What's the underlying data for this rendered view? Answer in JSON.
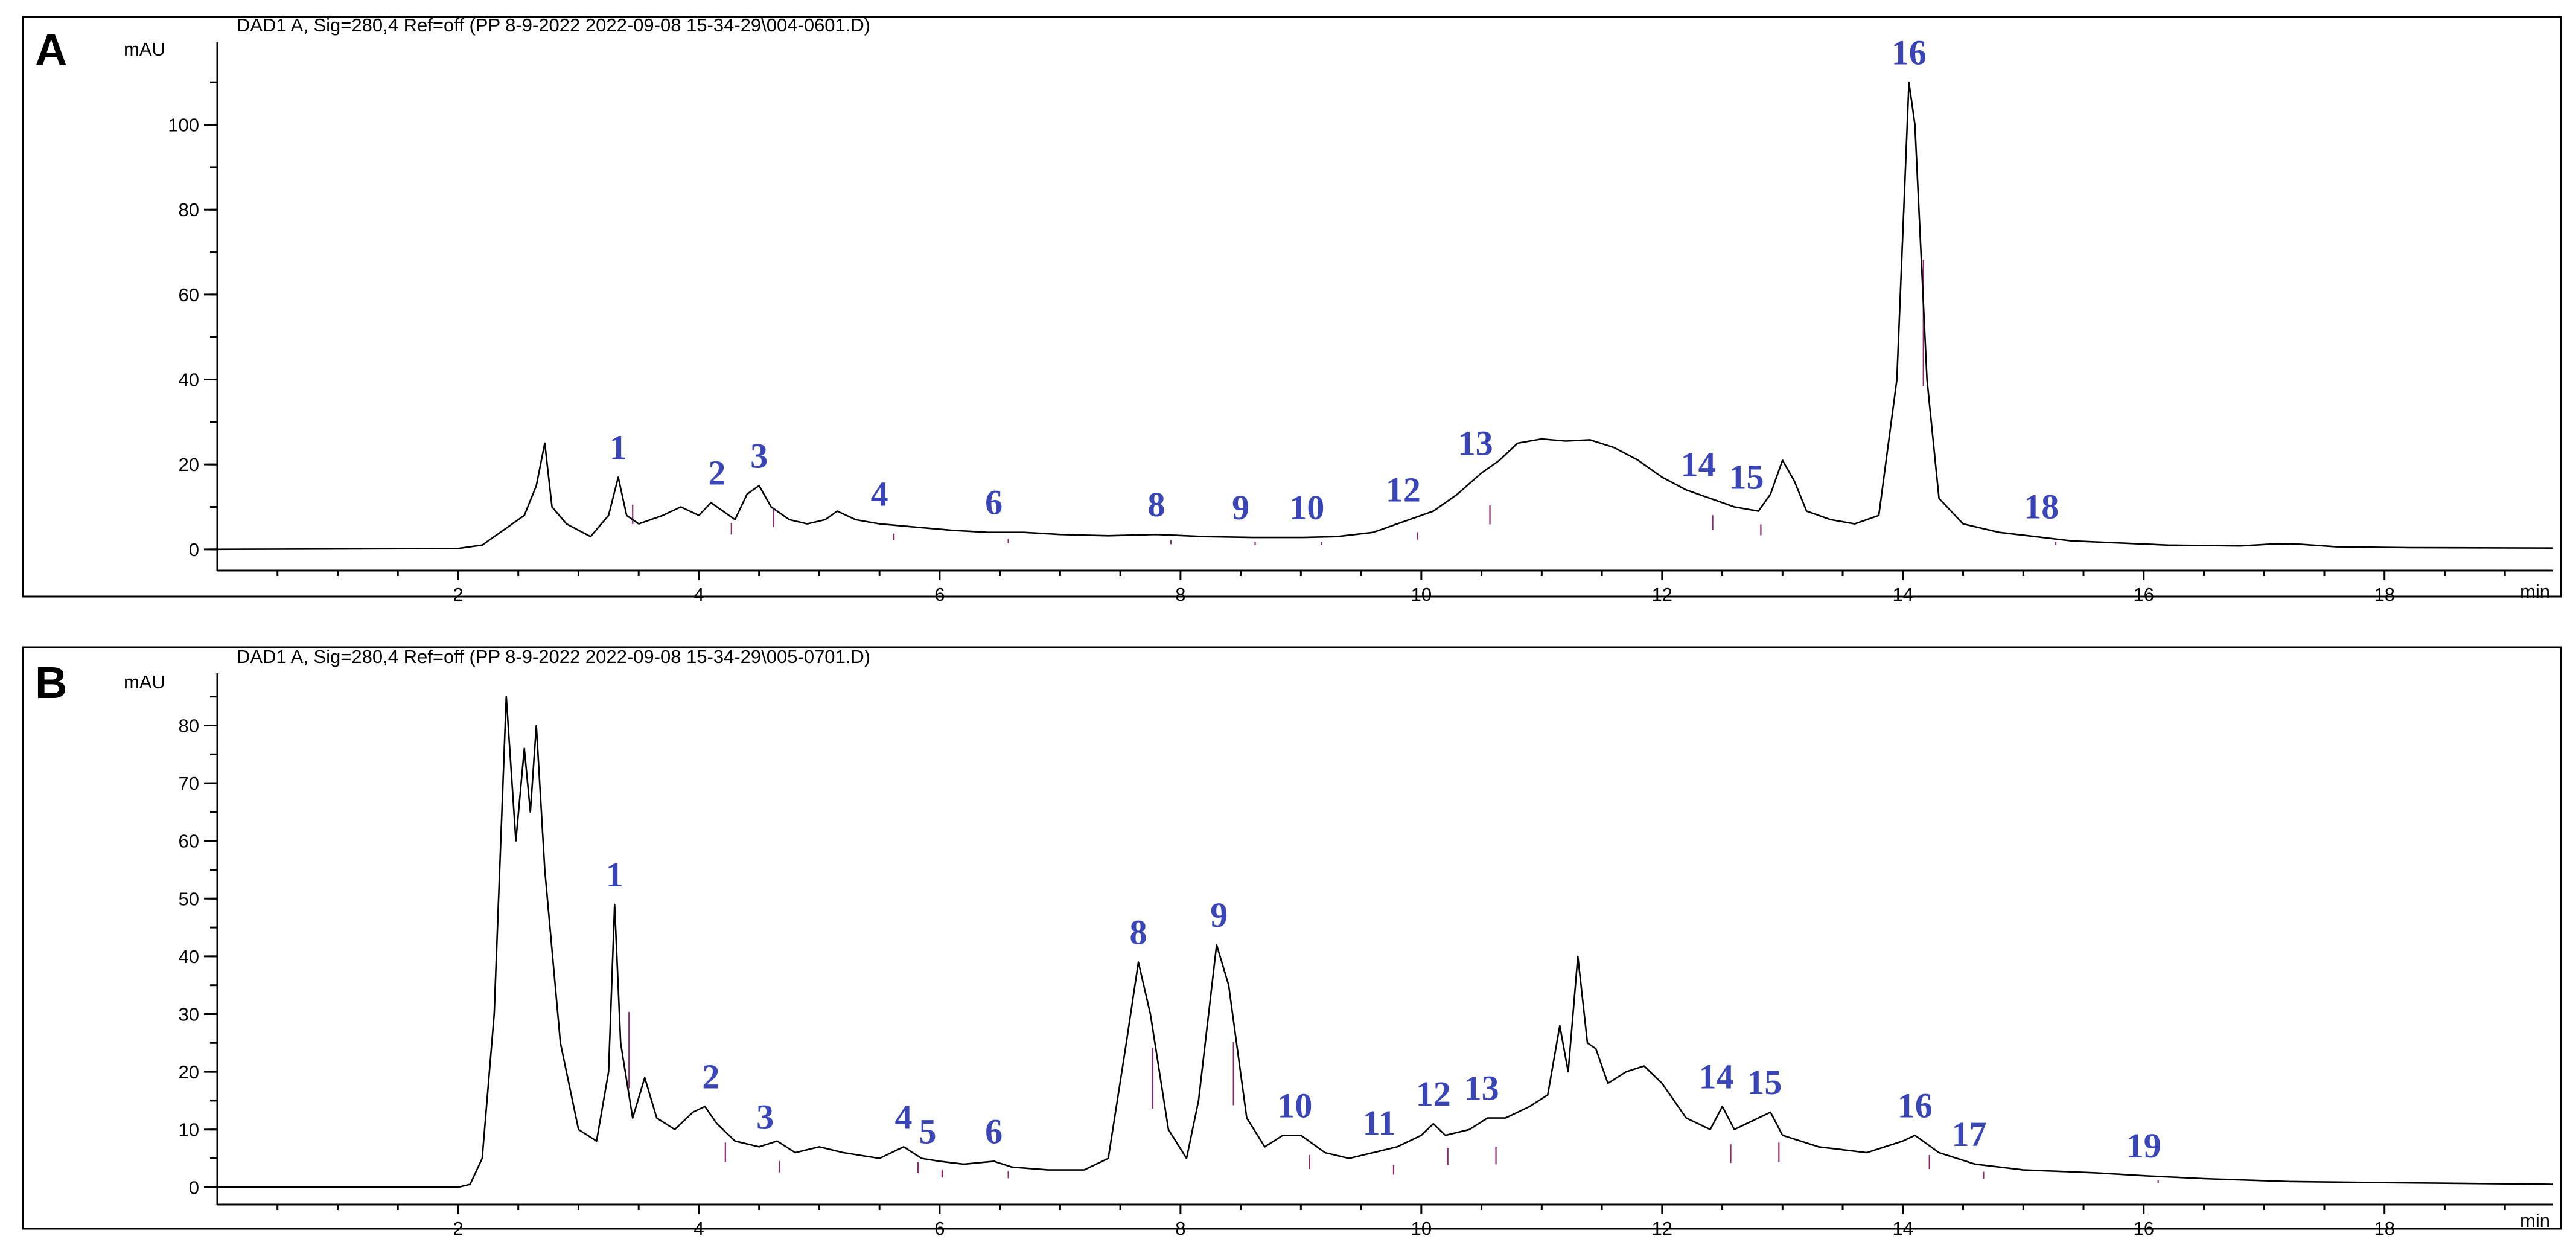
{
  "panels": [
    {
      "letter": "A",
      "header": "DAD1 A, Sig=280,4 Ref=off (PP 8-9-2022 2022-09-08 15-34-29\\004-0601.D)",
      "y_unit": "mAU",
      "x_unit": "min",
      "chart_data": {
        "type": "line",
        "xlim": [
          0,
          19.4
        ],
        "ylim": [
          -5,
          118
        ],
        "x_ticks": [
          2,
          4,
          6,
          8,
          10,
          12,
          14,
          16,
          18
        ],
        "y_ticks": [
          0,
          20,
          40,
          60,
          80,
          100
        ],
        "trace": [
          [
            0,
            0
          ],
          [
            2.0,
            0.2
          ],
          [
            2.2,
            1
          ],
          [
            2.4,
            5
          ],
          [
            2.55,
            8
          ],
          [
            2.65,
            15
          ],
          [
            2.72,
            25
          ],
          [
            2.78,
            10
          ],
          [
            2.9,
            6
          ],
          [
            3.1,
            3
          ],
          [
            3.25,
            8
          ],
          [
            3.33,
            17
          ],
          [
            3.4,
            8
          ],
          [
            3.5,
            6
          ],
          [
            3.7,
            8
          ],
          [
            3.85,
            10
          ],
          [
            4.0,
            8
          ],
          [
            4.1,
            11
          ],
          [
            4.2,
            9
          ],
          [
            4.3,
            7
          ],
          [
            4.4,
            13
          ],
          [
            4.5,
            15
          ],
          [
            4.6,
            10
          ],
          [
            4.75,
            7
          ],
          [
            4.9,
            6
          ],
          [
            5.05,
            7
          ],
          [
            5.15,
            9
          ],
          [
            5.3,
            7
          ],
          [
            5.5,
            6
          ],
          [
            5.7,
            5.5
          ],
          [
            5.9,
            5
          ],
          [
            6.1,
            4.5
          ],
          [
            6.4,
            4
          ],
          [
            6.7,
            4
          ],
          [
            7.0,
            3.5
          ],
          [
            7.4,
            3.2
          ],
          [
            7.8,
            3.5
          ],
          [
            8.2,
            3
          ],
          [
            8.6,
            2.8
          ],
          [
            9.0,
            2.8
          ],
          [
            9.3,
            3
          ],
          [
            9.6,
            4
          ],
          [
            9.9,
            7
          ],
          [
            10.1,
            9
          ],
          [
            10.3,
            13
          ],
          [
            10.5,
            18
          ],
          [
            10.65,
            21
          ],
          [
            10.8,
            25
          ],
          [
            11.0,
            26
          ],
          [
            11.2,
            25.5
          ],
          [
            11.4,
            25.8
          ],
          [
            11.6,
            24
          ],
          [
            11.8,
            21
          ],
          [
            12.0,
            17
          ],
          [
            12.2,
            14
          ],
          [
            12.4,
            12
          ],
          [
            12.6,
            10
          ],
          [
            12.8,
            9
          ],
          [
            12.9,
            13
          ],
          [
            13.0,
            21
          ],
          [
            13.1,
            16
          ],
          [
            13.2,
            9
          ],
          [
            13.4,
            7
          ],
          [
            13.6,
            6
          ],
          [
            13.8,
            8
          ],
          [
            13.95,
            40
          ],
          [
            14.05,
            110
          ],
          [
            14.1,
            100
          ],
          [
            14.2,
            40
          ],
          [
            14.3,
            12
          ],
          [
            14.5,
            6
          ],
          [
            14.8,
            4
          ],
          [
            15.1,
            3
          ],
          [
            15.4,
            2
          ],
          [
            15.8,
            1.5
          ],
          [
            16.2,
            1
          ],
          [
            16.8,
            0.8
          ],
          [
            17.1,
            1.3
          ],
          [
            17.3,
            1.2
          ],
          [
            17.6,
            0.6
          ],
          [
            18.2,
            0.4
          ],
          [
            19.4,
            0.3
          ]
        ],
        "peaks": [
          {
            "label": "1",
            "x": 3.33,
            "y": 17
          },
          {
            "label": "2",
            "x": 4.15,
            "y": 11
          },
          {
            "label": "3",
            "x": 4.5,
            "y": 15
          },
          {
            "label": "4",
            "x": 5.5,
            "y": 6
          },
          {
            "label": "6",
            "x": 6.45,
            "y": 4
          },
          {
            "label": "8",
            "x": 7.8,
            "y": 3.5
          },
          {
            "label": "9",
            "x": 8.5,
            "y": 2.8
          },
          {
            "label": "10",
            "x": 9.05,
            "y": 2.8
          },
          {
            "label": "12",
            "x": 9.85,
            "y": 7
          },
          {
            "label": "13",
            "x": 10.45,
            "y": 18
          },
          {
            "label": "14",
            "x": 12.3,
            "y": 13
          },
          {
            "label": "15",
            "x": 12.7,
            "y": 10
          },
          {
            "label": "16",
            "x": 14.05,
            "y": 110
          },
          {
            "label": "18",
            "x": 15.15,
            "y": 3
          }
        ]
      }
    },
    {
      "letter": "B",
      "header": "DAD1 A, Sig=280,4 Ref=off (PP 8-9-2022 2022-09-08 15-34-29\\005-0701.D)",
      "y_unit": "mAU",
      "x_unit": "min",
      "chart_data": {
        "type": "line",
        "xlim": [
          0,
          19.4
        ],
        "ylim": [
          -3,
          88
        ],
        "x_ticks": [
          2,
          4,
          6,
          8,
          10,
          12,
          14,
          16,
          18
        ],
        "y_ticks": [
          0,
          10,
          20,
          30,
          40,
          50,
          60,
          70,
          80
        ],
        "trace": [
          [
            0,
            0
          ],
          [
            2.0,
            0
          ],
          [
            2.1,
            0.5
          ],
          [
            2.2,
            5
          ],
          [
            2.3,
            30
          ],
          [
            2.4,
            85
          ],
          [
            2.48,
            60
          ],
          [
            2.55,
            76
          ],
          [
            2.6,
            65
          ],
          [
            2.65,
            80
          ],
          [
            2.72,
            55
          ],
          [
            2.85,
            25
          ],
          [
            3.0,
            10
          ],
          [
            3.15,
            8
          ],
          [
            3.25,
            20
          ],
          [
            3.3,
            49
          ],
          [
            3.35,
            25
          ],
          [
            3.45,
            12
          ],
          [
            3.55,
            19
          ],
          [
            3.65,
            12
          ],
          [
            3.8,
            10
          ],
          [
            3.95,
            13
          ],
          [
            4.05,
            14
          ],
          [
            4.15,
            11
          ],
          [
            4.3,
            8
          ],
          [
            4.5,
            7
          ],
          [
            4.65,
            8
          ],
          [
            4.8,
            6
          ],
          [
            5.0,
            7
          ],
          [
            5.2,
            6
          ],
          [
            5.5,
            5
          ],
          [
            5.7,
            7
          ],
          [
            5.85,
            5
          ],
          [
            6.0,
            4.5
          ],
          [
            6.2,
            4
          ],
          [
            6.45,
            4.5
          ],
          [
            6.6,
            3.5
          ],
          [
            6.9,
            3
          ],
          [
            7.2,
            3
          ],
          [
            7.4,
            5
          ],
          [
            7.55,
            25
          ],
          [
            7.65,
            39
          ],
          [
            7.75,
            30
          ],
          [
            7.9,
            10
          ],
          [
            8.05,
            5
          ],
          [
            8.15,
            15
          ],
          [
            8.3,
            42
          ],
          [
            8.4,
            35
          ],
          [
            8.55,
            12
          ],
          [
            8.7,
            7
          ],
          [
            8.85,
            9
          ],
          [
            9.0,
            9
          ],
          [
            9.2,
            6
          ],
          [
            9.4,
            5
          ],
          [
            9.6,
            6
          ],
          [
            9.8,
            7
          ],
          [
            10.0,
            9
          ],
          [
            10.1,
            11
          ],
          [
            10.2,
            9
          ],
          [
            10.4,
            10
          ],
          [
            10.55,
            12
          ],
          [
            10.7,
            12
          ],
          [
            10.9,
            14
          ],
          [
            11.05,
            16
          ],
          [
            11.15,
            28
          ],
          [
            11.22,
            20
          ],
          [
            11.3,
            40
          ],
          [
            11.38,
            25
          ],
          [
            11.45,
            24
          ],
          [
            11.55,
            18
          ],
          [
            11.7,
            20
          ],
          [
            11.85,
            21
          ],
          [
            12.0,
            18
          ],
          [
            12.2,
            12
          ],
          [
            12.4,
            10
          ],
          [
            12.5,
            14
          ],
          [
            12.6,
            10
          ],
          [
            12.8,
            12
          ],
          [
            12.9,
            13
          ],
          [
            13.0,
            9
          ],
          [
            13.3,
            7
          ],
          [
            13.7,
            6
          ],
          [
            14.0,
            8
          ],
          [
            14.1,
            9
          ],
          [
            14.3,
            6
          ],
          [
            14.6,
            4
          ],
          [
            15.0,
            3
          ],
          [
            15.6,
            2.5
          ],
          [
            16.0,
            2
          ],
          [
            16.5,
            1.5
          ],
          [
            17.2,
            1
          ],
          [
            18.0,
            0.8
          ],
          [
            19.4,
            0.5
          ]
        ],
        "peaks": [
          {
            "label": "1",
            "x": 3.3,
            "y": 49
          },
          {
            "label": "2",
            "x": 4.1,
            "y": 14
          },
          {
            "label": "3",
            "x": 4.55,
            "y": 7
          },
          {
            "label": "4",
            "x": 5.7,
            "y": 7
          },
          {
            "label": "5",
            "x": 5.9,
            "y": 4.5
          },
          {
            "label": "6",
            "x": 6.45,
            "y": 4.5
          },
          {
            "label": "8",
            "x": 7.65,
            "y": 39
          },
          {
            "label": "9",
            "x": 8.32,
            "y": 42
          },
          {
            "label": "10",
            "x": 8.95,
            "y": 9
          },
          {
            "label": "11",
            "x": 9.65,
            "y": 6
          },
          {
            "label": "12",
            "x": 10.1,
            "y": 11
          },
          {
            "label": "13",
            "x": 10.5,
            "y": 12
          },
          {
            "label": "14",
            "x": 12.45,
            "y": 14
          },
          {
            "label": "15",
            "x": 12.85,
            "y": 13
          },
          {
            "label": "16",
            "x": 14.1,
            "y": 9
          },
          {
            "label": "17",
            "x": 14.55,
            "y": 4
          },
          {
            "label": "19",
            "x": 16.0,
            "y": 2
          }
        ]
      }
    }
  ]
}
